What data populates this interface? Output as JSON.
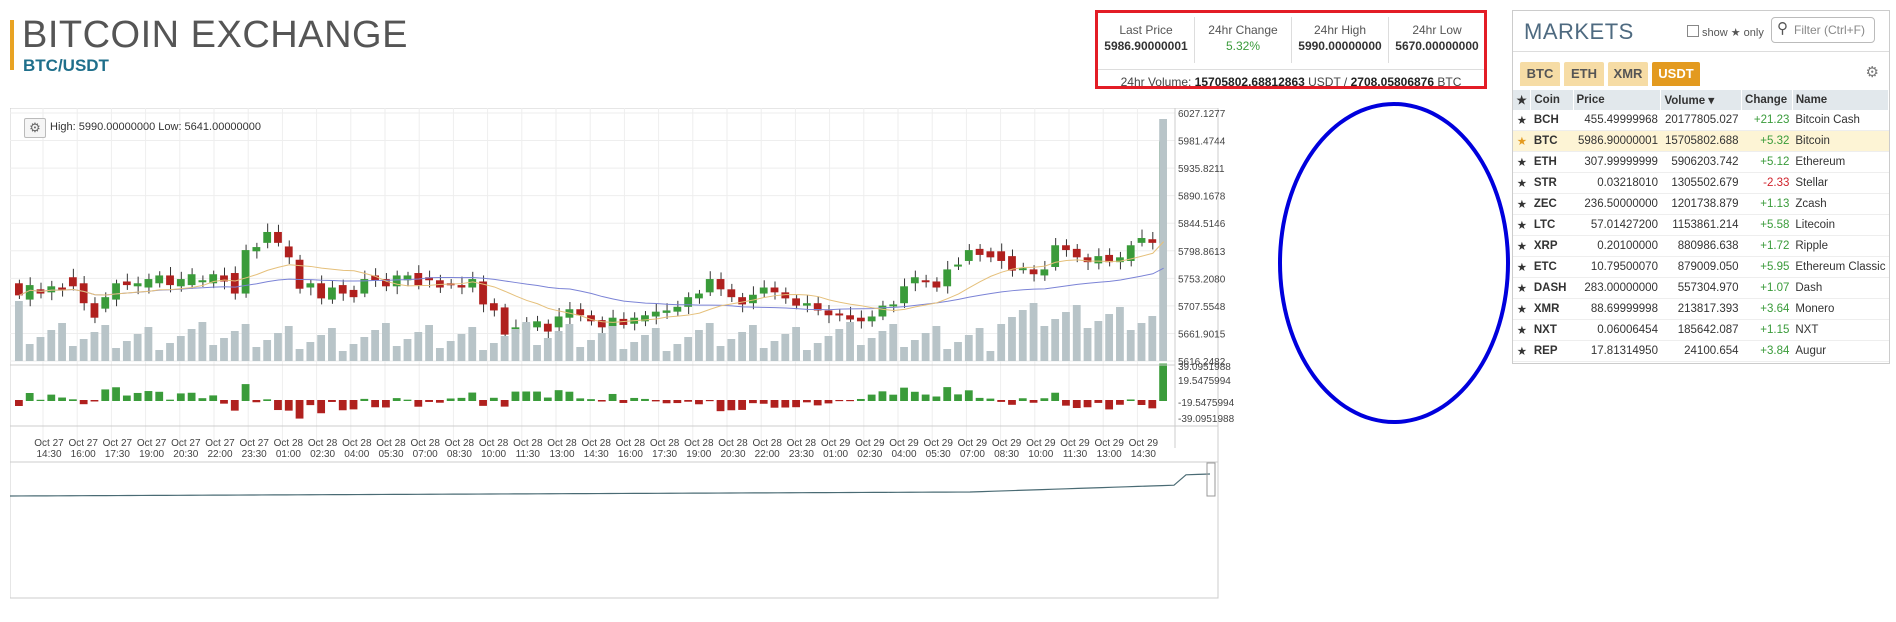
{
  "header": {
    "title": "BITCOIN EXCHANGE",
    "pair": "BTC/USDT"
  },
  "stats": {
    "last_price_label": "Last Price",
    "last_price": "5986.90000001",
    "change_label": "24hr Change",
    "change": "5.32%",
    "high_label": "24hr High",
    "high": "5990.00000000",
    "low_label": "24hr Low",
    "low": "5670.00000000",
    "volume_label": "24hr Volume:",
    "volume_usdt": "15705802.68812863",
    "volume_usdt_unit": "USDT /",
    "volume_btc": "2708.05806876",
    "volume_btc_unit": "BTC"
  },
  "chart_info": {
    "gear_icon": "gear-icon",
    "high_low": "High: 5990.00000000   Low: 5641.00000000"
  },
  "chart_data": {
    "type": "candlestick",
    "price_axis_ticks": [
      "6027.1277",
      "5981.4744",
      "5935.8211",
      "5890.1678",
      "5844.5146",
      "5798.8613",
      "5753.2080",
      "5707.5548",
      "5661.9015",
      "5616.2482"
    ],
    "indicator_axis_ticks": [
      "39.0951988",
      "19.5475994",
      "-19.5475994",
      "-39.0951988"
    ],
    "time_ticks": [
      [
        "Oct 27",
        "14:30"
      ],
      [
        "Oct 27",
        "16:00"
      ],
      [
        "Oct 27",
        "17:30"
      ],
      [
        "Oct 27",
        "19:00"
      ],
      [
        "Oct 27",
        "20:30"
      ],
      [
        "Oct 27",
        "22:00"
      ],
      [
        "Oct 27",
        "23:30"
      ],
      [
        "Oct 28",
        "01:00"
      ],
      [
        "Oct 28",
        "02:30"
      ],
      [
        "Oct 28",
        "04:00"
      ],
      [
        "Oct 28",
        "05:30"
      ],
      [
        "Oct 28",
        "07:00"
      ],
      [
        "Oct 28",
        "08:30"
      ],
      [
        "Oct 28",
        "10:00"
      ],
      [
        "Oct 28",
        "11:30"
      ],
      [
        "Oct 28",
        "13:00"
      ],
      [
        "Oct 28",
        "14:30"
      ],
      [
        "Oct 28",
        "16:00"
      ],
      [
        "Oct 28",
        "17:30"
      ],
      [
        "Oct 28",
        "19:00"
      ],
      [
        "Oct 28",
        "20:30"
      ],
      [
        "Oct 28",
        "22:00"
      ],
      [
        "Oct 28",
        "23:30"
      ],
      [
        "Oct 29",
        "01:00"
      ],
      [
        "Oct 29",
        "02:30"
      ],
      [
        "Oct 29",
        "04:00"
      ],
      [
        "Oct 29",
        "05:30"
      ],
      [
        "Oct 29",
        "07:00"
      ],
      [
        "Oct 29",
        "08:30"
      ],
      [
        "Oct 29",
        "10:00"
      ],
      [
        "Oct 29",
        "11:30"
      ],
      [
        "Oct 29",
        "13:00"
      ],
      [
        "Oct 29",
        "14:30"
      ]
    ],
    "price_range": [
      5616.2482,
      6027.1277
    ],
    "candles": [
      [
        5745,
        5725
      ],
      [
        5718,
        5742
      ],
      [
        5735,
        5728
      ],
      [
        5730,
        5740
      ],
      [
        5738,
        5733
      ],
      [
        5755,
        5740
      ],
      [
        5745,
        5712
      ],
      [
        5712,
        5688
      ],
      [
        5703,
        5722
      ],
      [
        5718,
        5745
      ],
      [
        5748,
        5742
      ],
      [
        5740,
        5745
      ],
      [
        5738,
        5752
      ],
      [
        5745,
        5758
      ],
      [
        5758,
        5742
      ],
      [
        5740,
        5752
      ],
      [
        5742,
        5760
      ],
      [
        5750,
        5750
      ],
      [
        5745,
        5760
      ],
      [
        5758,
        5748
      ],
      [
        5762,
        5728
      ],
      [
        5728,
        5800
      ],
      [
        5798,
        5805
      ],
      [
        5812,
        5830
      ],
      [
        5830,
        5812
      ],
      [
        5806,
        5788
      ],
      [
        5784,
        5736
      ],
      [
        5738,
        5745
      ],
      [
        5745,
        5720
      ],
      [
        5718,
        5738
      ],
      [
        5742,
        5728
      ],
      [
        5734,
        5722
      ],
      [
        5728,
        5752
      ],
      [
        5758,
        5750
      ],
      [
        5752,
        5740
      ],
      [
        5740,
        5758
      ],
      [
        5750,
        5758
      ],
      [
        5762,
        5742
      ],
      [
        5755,
        5750
      ],
      [
        5750,
        5738
      ],
      [
        5745,
        5742
      ],
      [
        5742,
        5738
      ],
      [
        5738,
        5752
      ],
      [
        5748,
        5710
      ],
      [
        5712,
        5700
      ],
      [
        5705,
        5660
      ],
      [
        5662,
        5672
      ],
      [
        5668,
        5678
      ],
      [
        5672,
        5682
      ],
      [
        5678,
        5665
      ],
      [
        5672,
        5690
      ],
      [
        5688,
        5702
      ],
      [
        5702,
        5692
      ],
      [
        5692,
        5682
      ],
      [
        5684,
        5672
      ],
      [
        5670,
        5688
      ],
      [
        5686,
        5676
      ],
      [
        5678,
        5688
      ],
      [
        5682,
        5692
      ],
      [
        5690,
        5698
      ],
      [
        5696,
        5700
      ],
      [
        5698,
        5706
      ],
      [
        5706,
        5722
      ],
      [
        5720,
        5728
      ],
      [
        5730,
        5752
      ],
      [
        5752,
        5735
      ],
      [
        5735,
        5722
      ],
      [
        5722,
        5710
      ],
      [
        5712,
        5726
      ],
      [
        5728,
        5738
      ],
      [
        5738,
        5730
      ],
      [
        5730,
        5720
      ],
      [
        5720,
        5708
      ],
      [
        5708,
        5712
      ],
      [
        5712,
        5700
      ],
      [
        5700,
        5692
      ],
      [
        5695,
        5692
      ],
      [
        5692,
        5685
      ],
      [
        5688,
        5682
      ],
      [
        5682,
        5690
      ],
      [
        5690,
        5708
      ],
      [
        5708,
        5710
      ],
      [
        5712,
        5740
      ],
      [
        5745,
        5755
      ],
      [
        5750,
        5748
      ],
      [
        5748,
        5738
      ],
      [
        5740,
        5768
      ],
      [
        5776,
        5776
      ],
      [
        5782,
        5800
      ],
      [
        5802,
        5792
      ],
      [
        5798,
        5788
      ],
      [
        5798,
        5782
      ],
      [
        5790,
        5766
      ],
      [
        5768,
        5770
      ],
      [
        5768,
        5760
      ],
      [
        5758,
        5768
      ],
      [
        5772,
        5808
      ],
      [
        5808,
        5800
      ],
      [
        5802,
        5788
      ],
      [
        5788,
        5780
      ],
      [
        5778,
        5790
      ],
      [
        5792,
        5780
      ],
      [
        5780,
        5788
      ],
      [
        5782,
        5808
      ],
      [
        5812,
        5820
      ],
      [
        5818,
        5812
      ],
      [
        5812,
        5980
      ]
    ],
    "series": [
      {
        "name": "",
        "color": "#7b83d6",
        "kind": "ma_long"
      },
      {
        "name": "",
        "color": "#e5c07b",
        "kind": "ma_short"
      }
    ]
  },
  "markets": {
    "title": "MARKETS",
    "show_label": "show",
    "only_label": "★ only",
    "filter_placeholder": "Filter (Ctrl+F)",
    "tabs": [
      "BTC",
      "ETH",
      "XMR",
      "USDT"
    ],
    "active_tab": "USDT",
    "columns": [
      "★",
      "Coin",
      "Price",
      "Volume ▾",
      "Change",
      "Name"
    ],
    "rows": [
      {
        "coin": "BCH",
        "price": "455.49999968",
        "volume": "20177805.027",
        "change": "+21.23",
        "name": "Bitcoin Cash"
      },
      {
        "coin": "BTC",
        "price": "5986.90000001",
        "volume": "15705802.688",
        "change": "+5.32",
        "name": "Bitcoin"
      },
      {
        "coin": "ETH",
        "price": "307.99999999",
        "volume": "5906203.742",
        "change": "+5.12",
        "name": "Ethereum"
      },
      {
        "coin": "STR",
        "price": "0.03218010",
        "volume": "1305502.679",
        "change": "-2.33",
        "name": "Stellar"
      },
      {
        "coin": "ZEC",
        "price": "236.50000000",
        "volume": "1201738.879",
        "change": "+1.13",
        "name": "Zcash"
      },
      {
        "coin": "LTC",
        "price": "57.01427200",
        "volume": "1153861.214",
        "change": "+5.58",
        "name": "Litecoin"
      },
      {
        "coin": "XRP",
        "price": "0.20100000",
        "volume": "880986.638",
        "change": "+1.72",
        "name": "Ripple"
      },
      {
        "coin": "ETC",
        "price": "10.79500070",
        "volume": "879009.050",
        "change": "+5.95",
        "name": "Ethereum Classic"
      },
      {
        "coin": "DASH",
        "price": "283.00000000",
        "volume": "557304.970",
        "change": "+1.07",
        "name": "Dash"
      },
      {
        "coin": "XMR",
        "price": "88.69999998",
        "volume": "213817.393",
        "change": "+3.64",
        "name": "Monero"
      },
      {
        "coin": "NXT",
        "price": "0.06006454",
        "volume": "185642.087",
        "change": "+1.15",
        "name": "NXT"
      },
      {
        "coin": "REP",
        "price": "17.81314950",
        "volume": "24100.654",
        "change": "+3.84",
        "name": "Augur"
      }
    ],
    "selected_coin": "BTC",
    "colors": {
      "positive": "#3a9b3a",
      "negative": "#d0232c",
      "accent": "#e39a1f",
      "up_candle": "#3a9b3a",
      "down_candle": "#b0201e"
    }
  }
}
